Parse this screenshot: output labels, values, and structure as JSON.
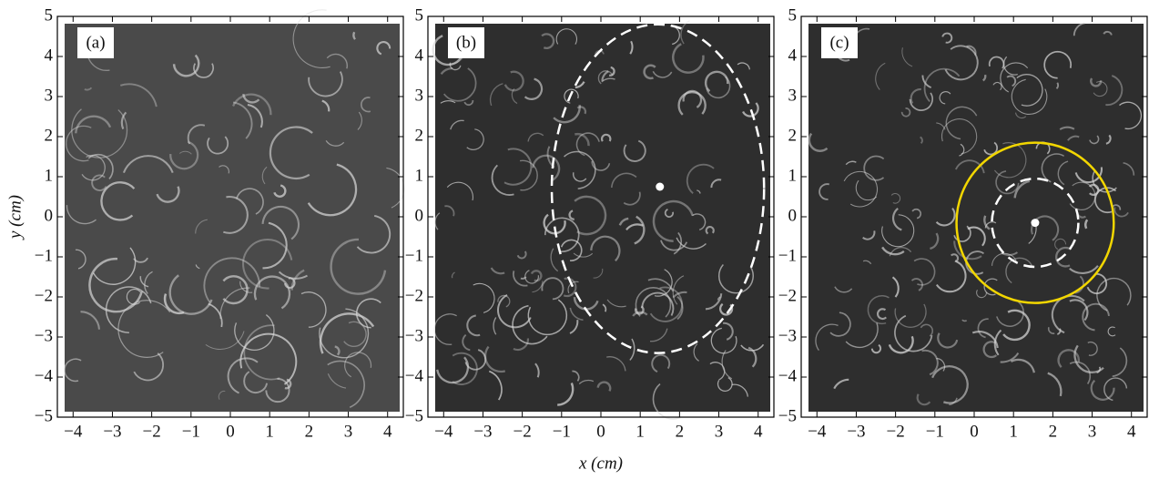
{
  "chart_data": [
    {
      "type": "image",
      "label": "(a)",
      "y_label": "y (cm)",
      "xlim": [
        -4.4,
        4.4
      ],
      "ylim": [
        -5,
        5
      ],
      "xticks": [
        {
          "value": -4,
          "label": "−4"
        },
        {
          "value": -3,
          "label": "−3"
        },
        {
          "value": -2,
          "label": "−2"
        },
        {
          "value": -1,
          "label": "−1"
        },
        0,
        1,
        2,
        3,
        4
      ],
      "yticks": [
        {
          "value": -5,
          "label": "−5"
        },
        {
          "value": -4,
          "label": "−4"
        },
        {
          "value": -3,
          "label": "−3"
        },
        {
          "value": -2,
          "label": "−2"
        },
        {
          "value": -1,
          "label": "−1"
        },
        0,
        1,
        2,
        3,
        4,
        5
      ],
      "overlays": []
    },
    {
      "type": "image",
      "label": "(b)",
      "x_label": "x (cm)",
      "xlim": [
        -4.4,
        4.4
      ],
      "ylim": [
        -5,
        5
      ],
      "xticks": [
        {
          "value": -4,
          "label": "−4"
        },
        {
          "value": -3,
          "label": "−3"
        },
        {
          "value": -2,
          "label": "−2"
        },
        {
          "value": -1,
          "label": "−1"
        },
        0,
        1,
        2,
        3,
        4
      ],
      "yticks": [
        {
          "value": -5,
          "label": "−5"
        },
        {
          "value": -4,
          "label": "−4"
        },
        {
          "value": -3,
          "label": "−3"
        },
        {
          "value": -2,
          "label": "−2"
        },
        {
          "value": -1,
          "label": "−1"
        },
        0,
        1,
        2,
        3,
        4,
        5
      ],
      "overlays": [
        {
          "shape": "ellipse",
          "cx": 1.45,
          "cy": 0.7,
          "rx": 2.7,
          "ry": 4.1,
          "color": "#ffffff",
          "dashed": true
        },
        {
          "shape": "point",
          "cx": 1.5,
          "cy": 0.75,
          "color": "#ffffff"
        }
      ]
    },
    {
      "type": "image",
      "label": "(c)",
      "xlim": [
        -4.4,
        4.4
      ],
      "ylim": [
        -5,
        5
      ],
      "xticks": [
        {
          "value": -4,
          "label": "−4"
        },
        {
          "value": -3,
          "label": "−3"
        },
        {
          "value": -2,
          "label": "−2"
        },
        {
          "value": -1,
          "label": "−1"
        },
        0,
        1,
        2,
        3,
        4
      ],
      "yticks": [
        {
          "value": -5,
          "label": "−5"
        },
        {
          "value": -4,
          "label": "−4"
        },
        {
          "value": -3,
          "label": "−3"
        },
        {
          "value": -2,
          "label": "−2"
        },
        {
          "value": -1,
          "label": "−1"
        },
        0,
        1,
        2,
        3,
        4,
        5
      ],
      "overlays": [
        {
          "shape": "circle",
          "cx": 1.55,
          "cy": -0.15,
          "r": 2.0,
          "color": "#f2d600",
          "dashed": false
        },
        {
          "shape": "circle",
          "cx": 1.55,
          "cy": -0.15,
          "r": 1.1,
          "color": "#ffffff",
          "dashed": true
        },
        {
          "shape": "point",
          "cx": 1.55,
          "cy": -0.15,
          "color": "#ffffff"
        }
      ]
    }
  ]
}
